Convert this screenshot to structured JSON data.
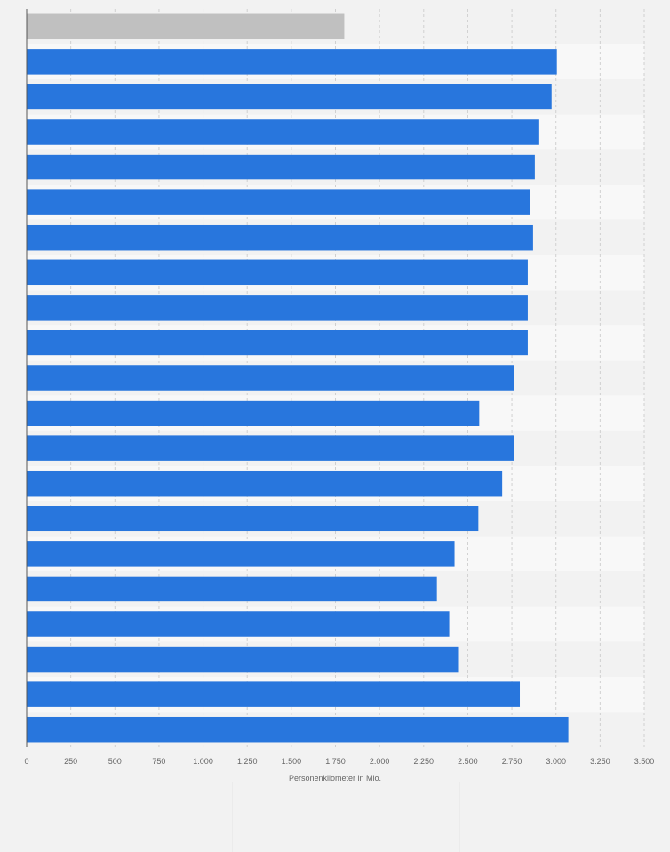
{
  "chart_data": {
    "type": "bar",
    "orientation": "horizontal",
    "categories": [
      "",
      "",
      "",
      "",
      "",
      "",
      "",
      "",
      "",
      "",
      "",
      "",
      "",
      "",
      "",
      "",
      "",
      "",
      "",
      "",
      ""
    ],
    "values": [
      1800,
      3005,
      2975,
      2905,
      2880,
      2855,
      2870,
      2840,
      2840,
      2840,
      2760,
      2565,
      2760,
      2695,
      2560,
      2425,
      2325,
      2395,
      2445,
      2795,
      3070
    ],
    "highlight_colors": [
      "#c0c0c0",
      "#2876dd",
      "#2876dd",
      "#2876dd",
      "#2876dd",
      "#2876dd",
      "#2876dd",
      "#2876dd",
      "#2876dd",
      "#2876dd",
      "#2876dd",
      "#2876dd",
      "#2876dd",
      "#2876dd",
      "#2876dd",
      "#2876dd",
      "#2876dd",
      "#2876dd",
      "#2876dd",
      "#2876dd",
      "#2876dd"
    ],
    "xlim": [
      0,
      3500
    ],
    "xticks": [
      0,
      250,
      500,
      750,
      1000,
      1250,
      1500,
      1750,
      2000,
      2250,
      2500,
      2750,
      3000,
      3250,
      3500
    ],
    "xtick_labels": [
      "0",
      "250",
      "500",
      "750",
      "1.000",
      "1.250",
      "1.500",
      "1.750",
      "2.000",
      "2.250",
      "2.500",
      "2.750",
      "3.000",
      "3.250",
      "3.500"
    ],
    "xlabel": "Personenkilometer in Mio.",
    "ylabel": "",
    "title": "",
    "grid": "vertical dashed",
    "legend": "none"
  },
  "colors": {
    "bar": "#2876dd",
    "bar_muted": "#c0c0c0",
    "plot_background": "#f8f8f8",
    "band_alt": "#f2f2f2",
    "grid": "#d0d0d0",
    "axis": "#555555",
    "tick_text": "#666666"
  }
}
